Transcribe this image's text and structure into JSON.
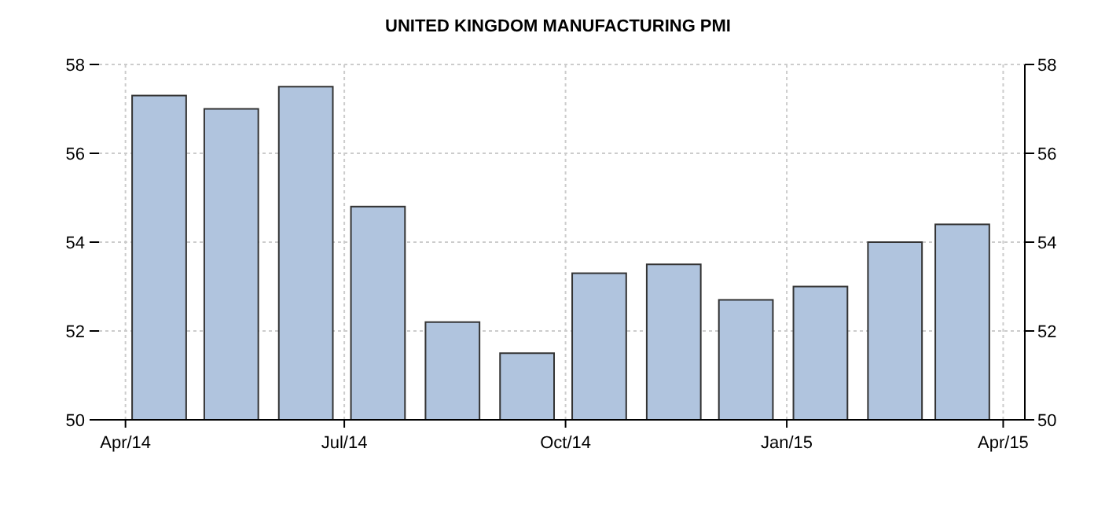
{
  "chart_data": {
    "type": "bar",
    "title": "UNITED KINGDOM MANUFACTURING PMI",
    "x": [
      "2014-04-15",
      "2014-05-15",
      "2014-06-15",
      "2014-07-15",
      "2014-08-15",
      "2014-09-15",
      "2014-10-15",
      "2014-11-15",
      "2014-12-15",
      "2015-01-15",
      "2015-02-15",
      "2015-03-15"
    ],
    "values": [
      57.3,
      57.0,
      57.5,
      54.8,
      52.2,
      51.5,
      53.3,
      53.5,
      52.7,
      53.0,
      54.0,
      54.4
    ],
    "color": "#b0c4de",
    "xlim": [
      "2014-03-21",
      "2015-04-10"
    ],
    "xticks": [
      {
        "value": "2014-04",
        "label": "Apr/14"
      },
      {
        "value": "2014-07",
        "label": "Jul/14"
      },
      {
        "value": "2014-10",
        "label": "Oct/14"
      },
      {
        "value": "2015-01",
        "label": "Jan/15"
      },
      {
        "value": "2015-04",
        "label": "Apr/15"
      }
    ],
    "ylim": [
      50,
      58
    ],
    "yticks": [
      50,
      52,
      54,
      56,
      58
    ],
    "y2lim": [
      50,
      58
    ],
    "y2ticks": [
      50,
      52,
      54,
      56,
      58
    ],
    "grid": true
  }
}
